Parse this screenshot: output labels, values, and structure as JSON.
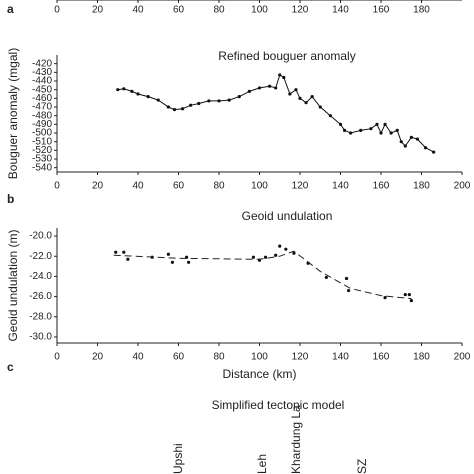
{
  "panel_labels": [
    "a",
    "b",
    "c"
  ],
  "chart_data": [
    {
      "type": "axis",
      "xlim": [
        0,
        200
      ],
      "xticks": [
        0,
        20,
        40,
        60,
        80,
        100,
        120,
        140,
        160,
        180
      ]
    },
    {
      "type": "line",
      "title": "Refined bouguer anomaly",
      "y_label": "Bouguer anomaly (mgal)",
      "x": [
        30,
        33,
        37,
        40,
        45,
        50,
        55,
        58,
        62,
        66,
        70,
        75,
        80,
        85,
        90,
        95,
        100,
        105,
        108,
        110,
        112,
        115,
        118,
        120,
        123,
        126,
        130,
        135,
        140,
        142,
        145,
        150,
        155,
        158,
        160,
        162,
        165,
        168,
        170,
        172,
        175,
        178,
        182,
        186
      ],
      "series": [
        {
          "color": "#111111",
          "values": [
            -450,
            -449,
            -452,
            -455,
            -458,
            -462,
            -470,
            -473,
            -472,
            -468,
            -466,
            -463,
            -463,
            -462,
            -458,
            -452,
            -448,
            -446,
            -448,
            -433,
            -436,
            -455,
            -450,
            -460,
            -465,
            -458,
            -470,
            -480,
            -490,
            -497,
            -500,
            -497,
            -495,
            -490,
            -500,
            -490,
            -500,
            -497,
            -510,
            -515,
            -505,
            -507,
            -517,
            -522
          ]
        }
      ],
      "xlim": [
        0,
        200
      ],
      "xticks": [
        0,
        20,
        40,
        60,
        80,
        100,
        120,
        140,
        160,
        180,
        200
      ],
      "ylim": [
        -545,
        -410
      ],
      "yticks": [
        -540,
        -530,
        -520,
        -510,
        -500,
        -490,
        -480,
        -470,
        -460,
        -450,
        -440,
        -430,
        -420
      ]
    },
    {
      "type": "scatter",
      "title": "Geoid undulation",
      "y_label": "Geoid undulation (m)",
      "x_label": "Distance (km)",
      "x": [
        29,
        33,
        35,
        47,
        55,
        57,
        64,
        65,
        97,
        100,
        103,
        108,
        110,
        113,
        117,
        124,
        133,
        143,
        144,
        162,
        172,
        174,
        175
      ],
      "series": [
        {
          "color": "#111111",
          "values": [
            -21.6,
            -21.6,
            -22.3,
            -22.1,
            -21.8,
            -22.6,
            -22.1,
            -22.6,
            -22.1,
            -22.4,
            -22.1,
            -21.9,
            -21.0,
            -21.3,
            -21.7,
            -22.7,
            -24.1,
            -24.2,
            -25.4,
            -26.1,
            -25.8,
            -25.8,
            -26.4
          ]
        }
      ],
      "trend": {
        "x": [
          28,
          60,
          100,
          110,
          117,
          130,
          145,
          160,
          175
        ],
        "values": [
          -21.9,
          -22.2,
          -22.3,
          -22.0,
          -21.5,
          -23.5,
          -25.2,
          -25.9,
          -26.2
        ]
      },
      "xlim": [
        0,
        200
      ],
      "xticks": [
        0,
        20,
        40,
        60,
        80,
        100,
        120,
        140,
        160,
        180,
        200
      ],
      "ylim": [
        -30.6,
        -19.2
      ],
      "yticks": [
        {
          "value": -30,
          "label": "-30.0"
        },
        {
          "value": -28,
          "label": "-28.0"
        },
        {
          "value": -26,
          "label": "-26.0"
        },
        {
          "value": -24,
          "label": "-24.0"
        },
        {
          "value": -22,
          "label": "-22.0"
        },
        {
          "value": -20,
          "label": "-20.0"
        }
      ]
    }
  ],
  "tectonic_model": {
    "title": "Simplified tectonic model",
    "labels": [
      "Upshi",
      "Leh",
      "Khardung La",
      "SZ"
    ]
  }
}
